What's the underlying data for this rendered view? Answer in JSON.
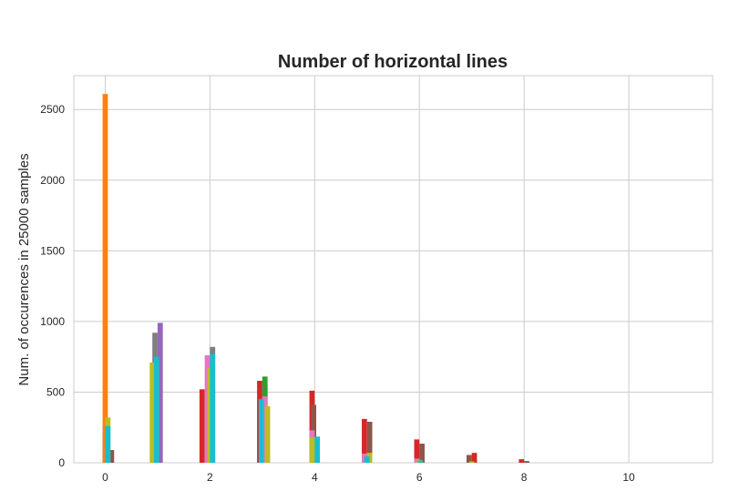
{
  "chart_data": {
    "type": "bar",
    "title": "Number of horizontal lines",
    "xlabel": "",
    "ylabel": "Num. of occurences in 25000 samples",
    "xlim": [
      -0.6,
      11.6
    ],
    "ylim": [
      0,
      2740
    ],
    "xticks": [
      0,
      2,
      4,
      6,
      8,
      10
    ],
    "yticks": [
      0,
      500,
      1000,
      1500,
      2000,
      2500
    ],
    "grid": true,
    "legend": "none",
    "series": [
      {
        "color": "#1f77b4",
        "bars": [
          {
            "x": 0.0,
            "y": 260
          }
        ]
      },
      {
        "color": "#ff7f0e",
        "bars": [
          {
            "x": 0.0,
            "y": 2610
          }
        ]
      },
      {
        "color": "#d62728",
        "bars": [
          {
            "x": 1.85,
            "y": 520
          },
          {
            "x": 2.95,
            "y": 580
          },
          {
            "x": 3.95,
            "y": 510
          },
          {
            "x": 4.95,
            "y": 310
          },
          {
            "x": 5.95,
            "y": 165
          },
          {
            "x": 7.05,
            "y": 70
          },
          {
            "x": 7.95,
            "y": 25
          }
        ]
      },
      {
        "color": "#8c564b",
        "bars": [
          {
            "x": 0.12,
            "y": 90
          },
          {
            "x": 3.05,
            "y": 550
          },
          {
            "x": 3.98,
            "y": 410
          },
          {
            "x": 5.05,
            "y": 290
          },
          {
            "x": 6.05,
            "y": 135
          },
          {
            "x": 6.95,
            "y": 55
          },
          {
            "x": 8.05,
            "y": 12
          }
        ]
      },
      {
        "color": "#2ca02c",
        "bars": [
          {
            "x": 3.05,
            "y": 610
          }
        ]
      },
      {
        "color": "#9467bd",
        "bars": [
          {
            "x": 1.05,
            "y": 990
          }
        ]
      },
      {
        "color": "#7f7f7f",
        "bars": [
          {
            "x": 0.95,
            "y": 920
          },
          {
            "x": 2.05,
            "y": 820
          }
        ]
      },
      {
        "color": "#e377c2",
        "bars": [
          {
            "x": 1.95,
            "y": 760
          },
          {
            "x": 3.05,
            "y": 470
          },
          {
            "x": 3.95,
            "y": 230
          },
          {
            "x": 4.95,
            "y": 65
          },
          {
            "x": 5.95,
            "y": 30
          }
        ]
      },
      {
        "color": "#bcbd22",
        "bars": [
          {
            "x": 0.05,
            "y": 320
          },
          {
            "x": 0.9,
            "y": 710
          },
          {
            "x": 2.0,
            "y": 670
          },
          {
            "x": 3.1,
            "y": 400
          },
          {
            "x": 3.95,
            "y": 180
          },
          {
            "x": 5.05,
            "y": 70
          },
          {
            "x": 6.0,
            "y": 20
          },
          {
            "x": 7.0,
            "y": 10
          }
        ]
      },
      {
        "color": "#17becf",
        "bars": [
          {
            "x": 0.05,
            "y": 260
          },
          {
            "x": 0.98,
            "y": 750
          },
          {
            "x": 2.05,
            "y": 770
          },
          {
            "x": 2.98,
            "y": 450
          },
          {
            "x": 4.05,
            "y": 185
          },
          {
            "x": 5.0,
            "y": 45
          },
          {
            "x": 6.02,
            "y": 15
          }
        ]
      }
    ]
  }
}
